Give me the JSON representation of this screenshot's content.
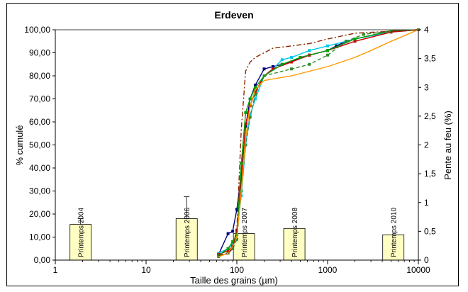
{
  "chart_data": {
    "type": "line",
    "title": "Erdeven",
    "xlabel": "Taille des grains (µm)",
    "ylabel": "% cumulé",
    "y2label": "Pente au feu (%)",
    "x_scale": "log",
    "xlim": [
      1,
      10000
    ],
    "ylim": [
      0,
      100
    ],
    "y2lim": [
      0,
      4
    ],
    "x_tick_labels": [
      "1",
      "10",
      "100",
      "1000",
      "10000"
    ],
    "y_tick_labels": [
      "0,00",
      "10,00",
      "20,00",
      "30,00",
      "40,00",
      "50,00",
      "60,00",
      "70,00",
      "80,00",
      "90,00",
      "100,00"
    ],
    "y2_tick_labels": [
      "0",
      "0,5",
      "1",
      "1,5",
      "2",
      "2,5",
      "3",
      "3,5",
      "4"
    ],
    "grid": "horizontal at 100",
    "bars": [
      {
        "label": "Printemps 2004",
        "x": 1.9,
        "value": 0.62,
        "err_top": 0.72
      },
      {
        "label": "Printemps 2006",
        "x": 28,
        "value": 0.72,
        "err_top": 1.1
      },
      {
        "label": "Printemps 2007",
        "x": 120,
        "value": 0.46,
        "err_top": 0.46
      },
      {
        "label": "Printemps 2008",
        "x": 430,
        "value": 0.55,
        "err_top": 0.55
      },
      {
        "label": "Printemps 2010",
        "x": 5300,
        "value": 0.44,
        "err_top": 0.44
      }
    ],
    "series": [
      {
        "color": "#000080",
        "dash": "",
        "marker": "square",
        "x": [
          63,
          80,
          90,
          100,
          112,
          125,
          140,
          160,
          200,
          250,
          315,
          400,
          500,
          630,
          1000,
          1250,
          1600,
          2000,
          5000,
          10000
        ],
        "values": [
          2.5,
          11.5,
          12.5,
          22,
          37,
          58,
          70,
          76,
          83,
          84,
          85,
          86,
          88,
          89,
          91,
          93,
          95,
          96,
          99.5,
          100
        ]
      },
      {
        "color": "#00c8e6",
        "dash": "",
        "marker": "square",
        "x": [
          63,
          80,
          90,
          100,
          112,
          125,
          140,
          160,
          200,
          250,
          315,
          400,
          630,
          1000,
          2000,
          5000,
          10000
        ],
        "values": [
          3,
          5,
          7,
          12,
          28,
          50,
          63,
          70,
          80,
          83,
          87,
          88,
          91,
          93,
          96,
          99,
          100
        ]
      },
      {
        "color": "#cc0000",
        "dash": "",
        "marker": "square",
        "x": [
          63,
          80,
          90,
          100,
          112,
          125,
          140,
          160,
          200,
          250,
          400,
          630,
          1000,
          2000,
          5000,
          10000
        ],
        "values": [
          2.5,
          4,
          6,
          13,
          35,
          59,
          67,
          73,
          80,
          83,
          86,
          89,
          91,
          95,
          99,
          100
        ]
      },
      {
        "color": "#00a000",
        "dash": "",
        "marker": "square",
        "x": [
          63,
          80,
          90,
          100,
          112,
          125,
          140,
          160,
          200,
          315,
          500,
          1000,
          2000,
          5000,
          10000
        ],
        "values": [
          2,
          5,
          8,
          11,
          42,
          64,
          70,
          75,
          80,
          85,
          88,
          91,
          96,
          99.5,
          100
        ]
      },
      {
        "color": "#2e8b2e",
        "dash": "5,3",
        "marker": "square",
        "x": [
          63,
          80,
          90,
          100,
          112,
          125,
          140,
          160,
          200,
          400,
          630,
          1000,
          1600,
          2500,
          5000,
          10000
        ],
        "values": [
          1.5,
          3,
          5,
          9,
          30,
          50,
          62,
          72,
          80,
          83,
          85,
          89,
          95,
          98,
          99.5,
          100
        ]
      },
      {
        "color": "#ff9900",
        "dash": "",
        "marker": "none",
        "x": [
          63,
          80,
          90,
          100,
          112,
          125,
          140,
          160,
          200,
          400,
          630,
          1000,
          2000,
          3000,
          5000,
          10000
        ],
        "values": [
          1.5,
          3,
          6,
          10,
          30,
          53,
          67,
          74,
          78,
          80,
          82,
          84,
          88,
          91,
          95,
          100
        ]
      },
      {
        "color": "#8b2500",
        "dash": "7,3,2,3",
        "marker": "none",
        "x": [
          63,
          80,
          90,
          100,
          112,
          125,
          140,
          160,
          200,
          250,
          400,
          630,
          1000,
          2000,
          10000
        ],
        "values": [
          2,
          3,
          5,
          13,
          57,
          82,
          86,
          88,
          90,
          92,
          93,
          94,
          96,
          98.5,
          100
        ]
      }
    ]
  }
}
